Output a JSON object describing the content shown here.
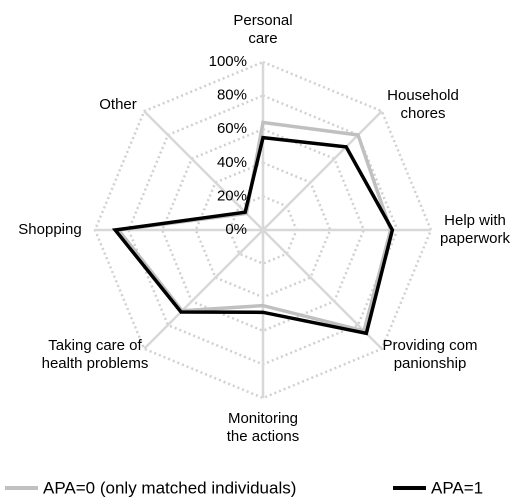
{
  "chart_data": {
    "type": "radar",
    "categories": [
      "Personal care",
      "Household chores",
      "Help with paperwork",
      "Providing companionship",
      "Monitoring the actions",
      "Taking care of health problems",
      "Shopping",
      "Other"
    ],
    "series": [
      {
        "name": "APA=0 (only matched individuals)",
        "color": "#c0c0c0",
        "values": [
          64,
          80,
          76,
          85,
          45,
          68,
          86,
          14
        ]
      },
      {
        "name": "APA=1",
        "color": "#000000",
        "values": [
          55,
          70,
          77,
          87,
          49,
          69,
          88,
          15
        ]
      }
    ],
    "rlim": [
      0,
      100
    ],
    "rticks": [
      {
        "value": 0,
        "label": "0%"
      },
      {
        "value": 20,
        "label": "20%"
      },
      {
        "value": 40,
        "label": "40%"
      },
      {
        "value": 60,
        "label": "60%"
      },
      {
        "value": 80,
        "label": "80%"
      },
      {
        "value": 100,
        "label": "100%"
      }
    ],
    "grid": true,
    "legend": "bottom"
  }
}
